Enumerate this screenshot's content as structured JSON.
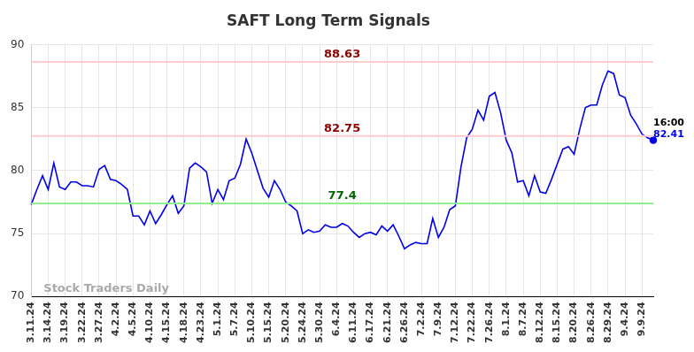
{
  "chart_data": {
    "type": "line",
    "title": "SAFT Long Term Signals",
    "watermark": "Stock Traders Daily",
    "last_time": "16:00",
    "categories": [
      "3.11.24",
      null,
      null,
      "3.14.24",
      null,
      null,
      "3.19.24",
      null,
      null,
      "3.22.24",
      null,
      null,
      "3.27.24",
      null,
      null,
      "4.2.24",
      null,
      null,
      "4.5.24",
      null,
      null,
      "4.10.24",
      null,
      null,
      "4.15.24",
      null,
      null,
      "4.18.24",
      null,
      null,
      "4.23.24",
      null,
      null,
      "5.1.24",
      null,
      null,
      "5.7.24",
      null,
      null,
      "5.10.24",
      null,
      null,
      "5.15.24",
      null,
      null,
      "5.20.24",
      null,
      null,
      "5.24.24",
      null,
      null,
      "5.30.24",
      null,
      null,
      "6.4.24",
      null,
      null,
      "6.11.24",
      null,
      null,
      "6.17.24",
      null,
      null,
      "6.21.24",
      null,
      null,
      "6.26.24",
      null,
      null,
      "7.2.24",
      null,
      null,
      "7.9.24",
      null,
      null,
      "7.12.24",
      null,
      null,
      "7.22.24",
      null,
      null,
      "7.26.24",
      null,
      null,
      "8.1.24",
      null,
      null,
      "8.7.24",
      null,
      null,
      "8.12.24",
      null,
      null,
      "8.15.24",
      null,
      null,
      "8.20.24",
      null,
      null,
      "8.26.24",
      null,
      null,
      "8.29.24",
      null,
      null,
      "9.4.24",
      null,
      null,
      "9.9.24",
      null,
      null
    ],
    "values": [
      77.3,
      78.5,
      79.6,
      78.5,
      80.6,
      78.7,
      78.5,
      79.1,
      79.1,
      78.8,
      78.8,
      78.7,
      80.1,
      80.4,
      79.3,
      79.2,
      78.9,
      78.5,
      76.4,
      76.4,
      75.7,
      76.8,
      75.8,
      76.5,
      77.3,
      78.0,
      76.6,
      77.2,
      80.2,
      80.6,
      80.3,
      79.9,
      77.4,
      78.5,
      77.7,
      79.2,
      79.4,
      80.5,
      82.5,
      81.4,
      80.0,
      78.6,
      77.9,
      79.2,
      78.5,
      77.5,
      77.2,
      76.8,
      75.0,
      75.3,
      75.1,
      75.2,
      75.7,
      75.5,
      75.5,
      75.8,
      75.6,
      75.1,
      74.7,
      75.0,
      75.1,
      74.9,
      75.6,
      75.2,
      75.7,
      74.8,
      73.8,
      74.1,
      74.3,
      74.2,
      74.2,
      76.2,
      74.7,
      75.5,
      76.9,
      77.2,
      80.3,
      82.6,
      83.3,
      84.8,
      84.0,
      85.9,
      86.2,
      84.6,
      82.4,
      81.4,
      79.1,
      79.2,
      78.0,
      79.6,
      78.3,
      78.2,
      79.3,
      80.5,
      81.7,
      81.9,
      81.3,
      83.3,
      85.0,
      85.2,
      85.2,
      86.8,
      87.9,
      87.7,
      86.0,
      85.8,
      84.4,
      83.7,
      82.9,
      82.6,
      82.41
    ],
    "color": "#0000ee",
    "levels": [
      {
        "value": 88.63,
        "color": "#ffcccc",
        "label_color": "#8b0000"
      },
      {
        "value": 82.75,
        "color": "#ffcccc",
        "label_color": "#8b0000"
      },
      {
        "value": 77.4,
        "color": "#90ee90",
        "label_color": "#006400"
      }
    ],
    "ylim": [
      70,
      90
    ],
    "yticks": [
      70,
      75,
      80,
      85,
      90
    ],
    "grid": true
  }
}
